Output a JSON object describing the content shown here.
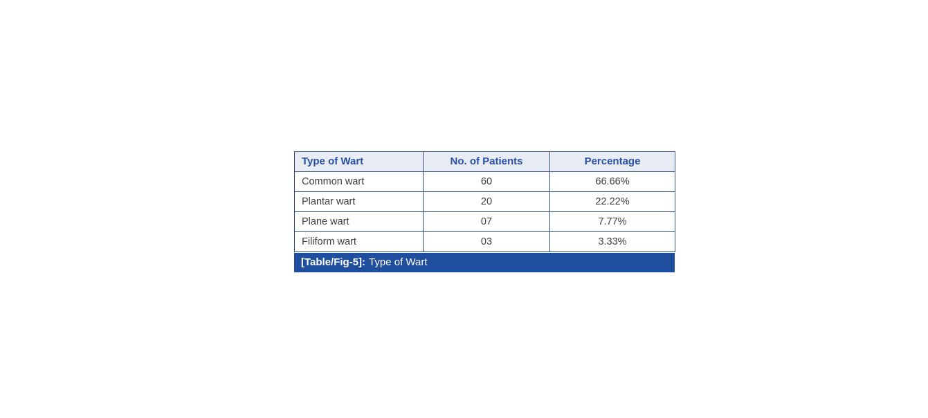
{
  "figure": {
    "caption": {
      "tag": "[Table/Fig-5]:",
      "title": "Type of Wart"
    }
  },
  "table": {
    "columns": [
      {
        "label": "Type of Wart",
        "align": "left"
      },
      {
        "label": "No. of Patients",
        "align": "center"
      },
      {
        "label": "Percentage",
        "align": "center"
      }
    ],
    "rows": [
      {
        "type": "Common wart",
        "patients": "60",
        "percentage": "66.66%"
      },
      {
        "type": "Plantar wart",
        "patients": "20",
        "percentage": "22.22%"
      },
      {
        "type": "Plane wart",
        "patients": "07",
        "percentage": "7.77%"
      },
      {
        "type": "Filiform wart",
        "patients": "03",
        "percentage": "3.33%"
      }
    ]
  },
  "colors": {
    "header_background": "#e8eaf4",
    "header_text": "#2b52a2",
    "border": "#2e4d7e",
    "caption_background": "#1f4e9e",
    "caption_text": "#ffffff",
    "body_text": "#3d3d3d"
  },
  "chart_data": {
    "type": "table",
    "title": "[Table/Fig-5]: Type of Wart",
    "categories": [
      "Common wart",
      "Plantar wart",
      "Plane wart",
      "Filiform wart"
    ],
    "series": [
      {
        "name": "No. of Patients",
        "values": [
          60,
          20,
          7,
          3
        ]
      },
      {
        "name": "Percentage",
        "values": [
          66.66,
          22.22,
          7.77,
          3.33
        ]
      }
    ]
  }
}
